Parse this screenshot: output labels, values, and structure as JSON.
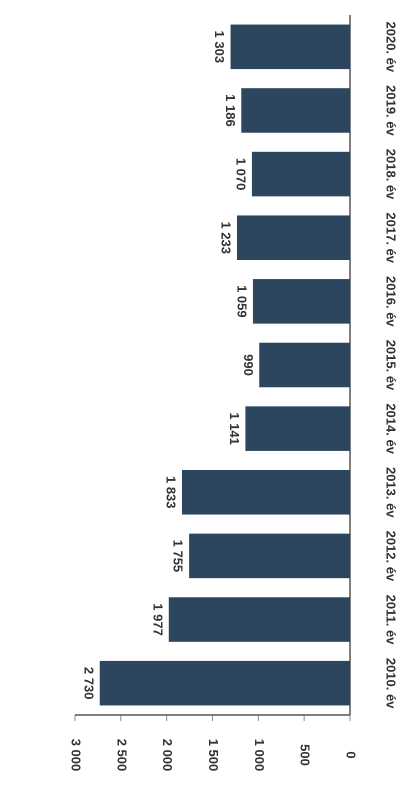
{
  "chart_data": {
    "type": "hbar",
    "categories": [
      "2010. év",
      "2011. év",
      "2012. év",
      "2013. év",
      "2014. év",
      "2015. év",
      "2016. év",
      "2017. év",
      "2018. év",
      "2019. év",
      "2020. év"
    ],
    "values": [
      2730,
      1977,
      1755,
      1833,
      1141,
      990,
      1059,
      1233,
      1070,
      1186,
      1303
    ],
    "value_labels": [
      "2 730",
      "1 977",
      "1 755",
      "1 833",
      "1 141",
      "990",
      "1 059",
      "1 233",
      "1 070",
      "1 186",
      "1 303"
    ],
    "color": "#2c4660",
    "xlim": [
      0,
      3000
    ],
    "xticks": [
      0,
      500,
      {
        "value": 1000,
        "label": "1 000"
      },
      {
        "value": 1500,
        "label": "1 500"
      },
      {
        "value": 2000,
        "label": "2 000"
      },
      {
        "value": 2500,
        "label": "2 500"
      },
      {
        "value": 3000,
        "label": "3 000"
      }
    ]
  }
}
